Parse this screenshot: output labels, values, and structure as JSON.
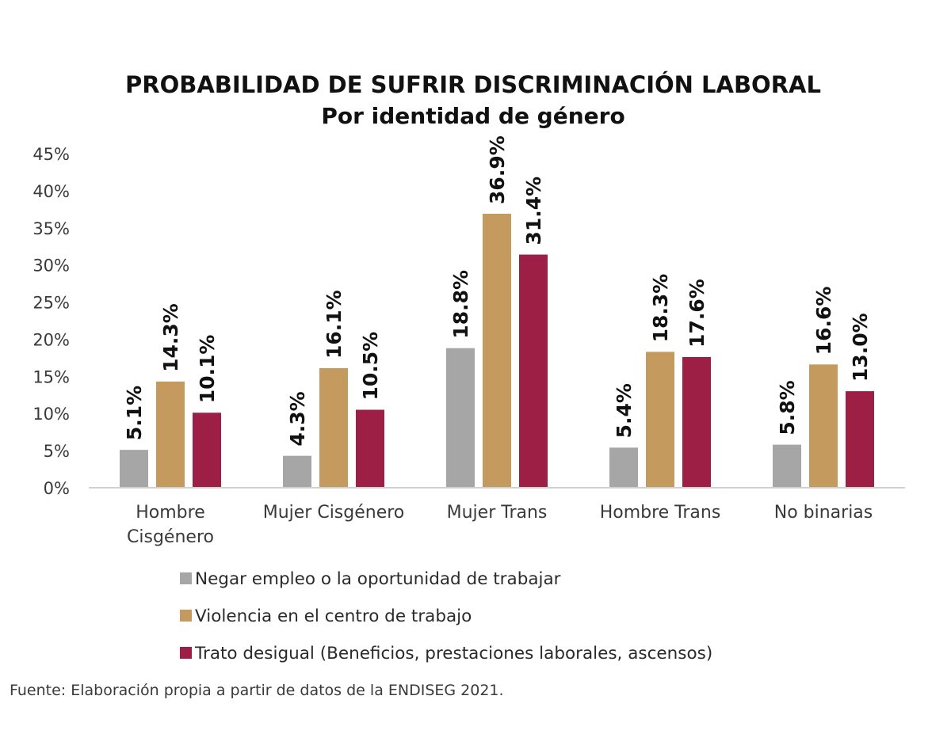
{
  "chart_data": {
    "type": "bar",
    "title": "PROBABILIDAD DE SUFRIR DISCRIMINACIÓN LABORAL",
    "subtitle": "Por identidad de género",
    "categories": [
      [
        "Hombre",
        "Cisgénero"
      ],
      [
        "Mujer Cisgénero"
      ],
      [
        "Mujer Trans"
      ],
      [
        "Hombre Trans"
      ],
      [
        "No binarias"
      ]
    ],
    "series": [
      {
        "name": "Negar empleo o la oportunidad de trabajar",
        "color": "#a6a6a6",
        "values": [
          5.1,
          4.3,
          18.8,
          5.4,
          5.8
        ],
        "labels": [
          "5.1%",
          "4.3%",
          "18.8%",
          "5.4%",
          "5.8%"
        ]
      },
      {
        "name": "Violencia en el centro de trabajo",
        "color": "#c49a5e",
        "values": [
          14.3,
          16.1,
          36.9,
          18.3,
          16.6
        ],
        "labels": [
          "14.3%",
          "16.1%",
          "36.9%",
          "18.3%",
          "16.6%"
        ]
      },
      {
        "name": "Trato desigual (Beneficios, prestaciones laborales, ascensos)",
        "color": "#9e1f45",
        "values": [
          10.1,
          10.5,
          31.4,
          17.6,
          13.0
        ],
        "labels": [
          "10.1%",
          "10.5%",
          "31.4%",
          "17.6%",
          "13.0%"
        ]
      }
    ],
    "ylim": [
      0,
      45
    ],
    "yticks": [
      0,
      5,
      10,
      15,
      20,
      25,
      30,
      35,
      40,
      45
    ],
    "ytick_labels": [
      "0%",
      "5%",
      "10%",
      "15%",
      "20%",
      "25%",
      "30%",
      "35%",
      "40%",
      "45%"
    ],
    "xlabel": "",
    "ylabel": "",
    "grid": false,
    "legend_position": "bottom",
    "source": "Fuente: Elaboración propia a partir de datos de la ENDISEG 2021."
  }
}
